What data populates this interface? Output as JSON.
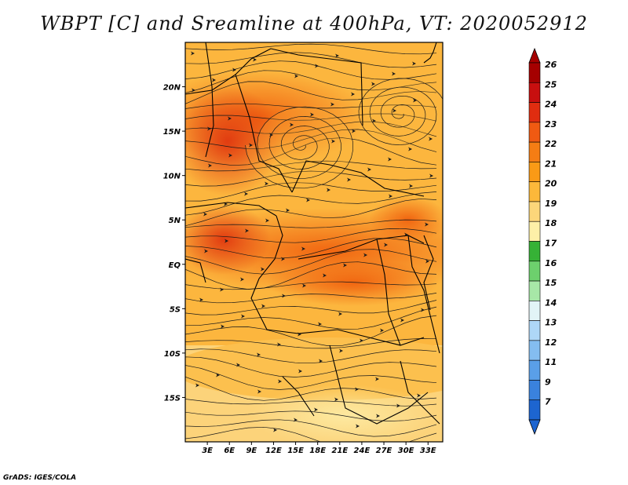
{
  "title": "WBPT [C] and Sreamline at 400hPa, VT: 2020052912",
  "footer": "GrADS: IGES/COLA",
  "map": {
    "lat_labels": [
      "20N",
      "15N",
      "10N",
      "5N",
      "EQ",
      "5S",
      "10S",
      "15S"
    ],
    "lat_values": [
      20,
      15,
      10,
      5,
      0,
      -5,
      -10,
      -15
    ],
    "lon_labels": [
      "3E",
      "6E",
      "9E",
      "12E",
      "15E",
      "18E",
      "21E",
      "24E",
      "27E",
      "30E",
      "33E"
    ],
    "lon_values": [
      3,
      6,
      9,
      12,
      15,
      18,
      21,
      24,
      27,
      30,
      33
    ],
    "lon_range": [
      0,
      35
    ],
    "lat_range": [
      -20,
      25
    ]
  },
  "colorbar": {
    "labels": [
      "26",
      "25",
      "24",
      "23",
      "22",
      "21",
      "20",
      "19",
      "18",
      "17",
      "16",
      "15",
      "14",
      "13",
      "12",
      "11",
      "9",
      "7"
    ],
    "colors": [
      "#a50000",
      "#c80f0f",
      "#e02d10",
      "#f05a12",
      "#f57d14",
      "#fa9a16",
      "#fcb83a",
      "#fcd67a",
      "#fdf0a8",
      "#36b236",
      "#6dd06d",
      "#a7e7a7",
      "#e2f4f7",
      "#aed7f7",
      "#84bdf0",
      "#5a9fe8",
      "#3a82dd",
      "#1d65d0"
    ]
  }
}
